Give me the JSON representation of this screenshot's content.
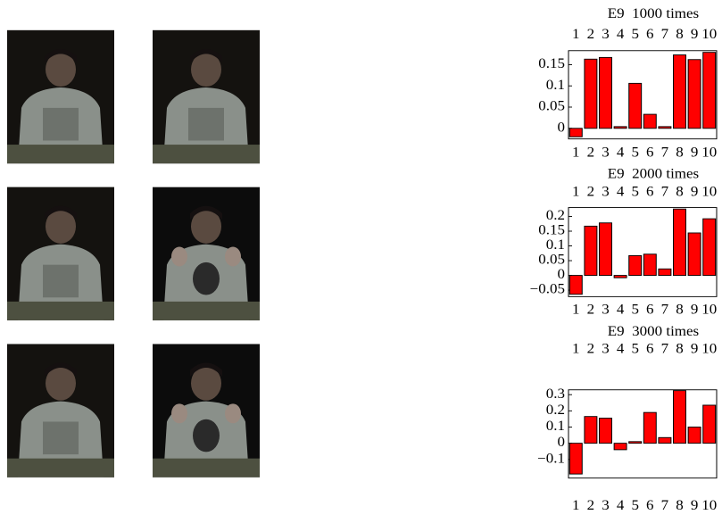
{
  "chart_data": [
    {
      "type": "bar",
      "title": "E9  1000 times",
      "categories": [
        "1",
        "2",
        "3",
        "4",
        "5",
        "6",
        "7",
        "8",
        "9",
        "10"
      ],
      "values": [
        -0.02,
        0.163,
        0.167,
        0.004,
        0.106,
        0.033,
        0.004,
        0.173,
        0.162,
        0.179
      ],
      "color": "#ff0000",
      "ylim": [
        -0.025,
        0.183
      ],
      "yticks": [
        0,
        0.05,
        0.1,
        0.15
      ],
      "grid": false
    },
    {
      "type": "bar",
      "title": "E9  2000 times",
      "categories": [
        "1",
        "2",
        "3",
        "4",
        "5",
        "6",
        "7",
        "8",
        "9",
        "10"
      ],
      "values": [
        -0.064,
        0.167,
        0.178,
        -0.008,
        0.067,
        0.072,
        0.022,
        0.225,
        0.144,
        0.192
      ],
      "color": "#ff0000",
      "ylim": [
        -0.072,
        0.23
      ],
      "yticks": [
        {
          "value": -0.05,
          "label": "−0.05"
        },
        0,
        0.05,
        0.1,
        0.15,
        0.2
      ],
      "grid": false
    },
    {
      "type": "bar",
      "title": "E9  3000 times",
      "categories": [
        "1",
        "2",
        "3",
        "4",
        "5",
        "6",
        "7",
        "8",
        "9",
        "10"
      ],
      "values": [
        -0.19,
        0.165,
        0.155,
        -0.04,
        0.01,
        0.19,
        0.035,
        0.325,
        0.1,
        0.235
      ],
      "color": "#ff0000",
      "ylim": [
        -0.215,
        0.33
      ],
      "yticks": [
        {
          "value": -0.1,
          "label": "−0.1"
        },
        0,
        0.1,
        0.2,
        0.3
      ],
      "grid": false
    }
  ]
}
